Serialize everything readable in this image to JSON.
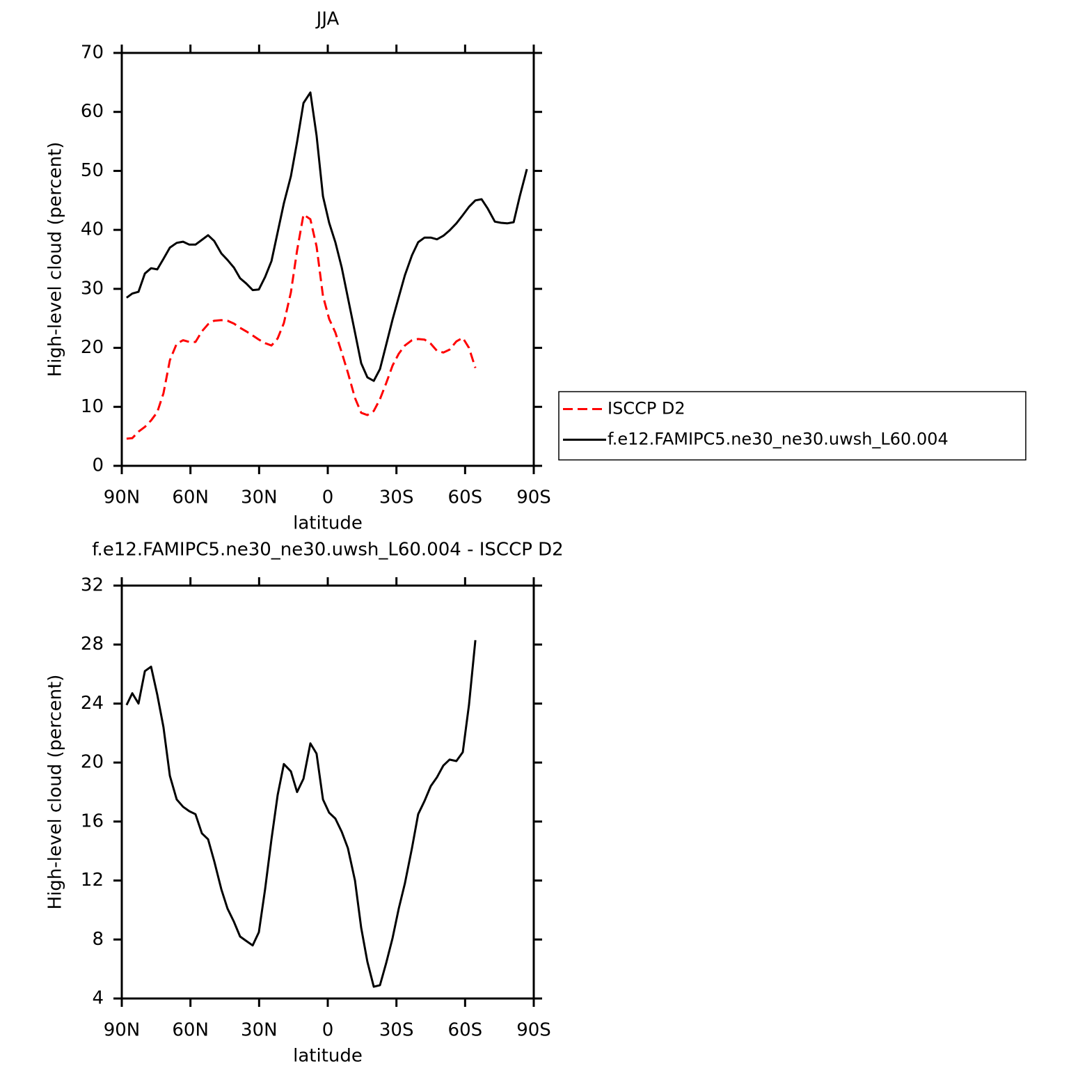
{
  "chart_data": [
    {
      "type": "line",
      "title": "JJA",
      "xlabel": "latitude",
      "ylabel": "High-level cloud (percent)",
      "x": [
        87.9,
        85.4,
        82.7,
        79.9,
        77.2,
        74.5,
        71.8,
        69.0,
        66.0,
        63.2,
        60.5,
        57.8,
        55.0,
        52.3,
        49.6,
        46.5,
        43.8,
        41.0,
        38.3,
        35.6,
        32.8,
        30.1,
        27.4,
        24.6,
        21.9,
        19.2,
        16.1,
        13.4,
        10.6,
        7.6,
        4.9,
        2.1,
        -0.6,
        -3.3,
        -6.1,
        -8.8,
        -11.9,
        -14.6,
        -17.3,
        -20.1,
        -22.8,
        -25.5,
        -28.3,
        -31.0,
        -33.7,
        -36.8,
        -39.5,
        -42.3,
        -45.0,
        -47.7,
        -50.5,
        -53.2,
        -56.2,
        -59.0,
        -61.7,
        -64.5,
        -67.2,
        -69.9,
        -73.0,
        -75.7,
        -78.4,
        -81.2,
        -83.9,
        -87.0
      ],
      "xlim": [
        90,
        -90
      ],
      "xticks": [
        {
          "value": 90,
          "label": "90N"
        },
        {
          "value": 60,
          "label": "60N"
        },
        {
          "value": 30,
          "label": "30N"
        },
        0,
        {
          "value": -30,
          "label": "30S"
        },
        {
          "value": -60,
          "label": "60S"
        },
        {
          "value": -90,
          "label": "90S"
        }
      ],
      "ylim": [
        0,
        70
      ],
      "yticks": [
        0,
        10,
        20,
        30,
        40,
        50,
        60,
        70
      ],
      "legend": "right",
      "series": [
        {
          "name": "ISCCP D2",
          "color": "#ff0000",
          "line_style": "dashed",
          "values": [
            4.6,
            4.7,
            5.8,
            6.6,
            7.7,
            9.1,
            12.3,
            17.9,
            20.7,
            21.3,
            21.0,
            21.0,
            22.8,
            24.0,
            24.6,
            24.7,
            24.6,
            24.1,
            23.4,
            22.8,
            22.1,
            21.4,
            20.8,
            20.4,
            21.6,
            24.2,
            29.4,
            36.5,
            42.6,
            41.8,
            37.2,
            28.8,
            24.9,
            22.6,
            19.2,
            15.8,
            11.5,
            9.0,
            8.6,
            9.3,
            11.3,
            14.0,
            17.0,
            19.0,
            20.4,
            21.3,
            21.5,
            21.4,
            20.7,
            19.5,
            19.2,
            19.7,
            21.1,
            21.7,
            20.0,
            16.6,
            null,
            null,
            null,
            null,
            null,
            null,
            null,
            null
          ]
        },
        {
          "name": "f.e12.FAMIPC5.ne30_ne30.uwsh_L60.004",
          "color": "#000000",
          "line_style": "solid",
          "values": [
            28.5,
            29.2,
            29.5,
            32.6,
            33.5,
            33.3,
            35.1,
            37.0,
            37.8,
            38.0,
            37.5,
            37.5,
            38.3,
            39.1,
            38.1,
            36.0,
            34.9,
            33.6,
            31.8,
            30.9,
            29.8,
            29.9,
            32.0,
            34.7,
            39.6,
            44.5,
            49.1,
            54.9,
            61.5,
            63.3,
            56.0,
            45.7,
            41.2,
            37.9,
            33.6,
            28.5,
            22.6,
            17.4,
            15.0,
            14.4,
            16.4,
            20.5,
            24.8,
            28.6,
            32.3,
            35.7,
            37.9,
            38.7,
            38.7,
            38.4,
            39.0,
            39.9,
            41.1,
            42.5,
            43.9,
            45.0,
            45.2,
            43.6,
            41.4,
            41.2,
            41.1,
            41.3,
            45.7,
            50.3
          ]
        }
      ]
    },
    {
      "type": "line",
      "title": "f.e12.FAMIPC5.ne30_ne30.uwsh_L60.004 - ISCCP D2",
      "xlabel": "latitude",
      "ylabel": "High-level cloud (percent)",
      "x": [
        87.9,
        85.4,
        82.7,
        79.9,
        77.2,
        74.5,
        71.8,
        69.0,
        66.0,
        63.2,
        60.5,
        57.8,
        55.0,
        52.3,
        49.6,
        46.5,
        43.8,
        41.0,
        38.3,
        35.6,
        32.8,
        30.1,
        27.4,
        24.6,
        21.9,
        19.2,
        16.1,
        13.4,
        10.6,
        7.6,
        4.9,
        2.1,
        -0.6,
        -3.3,
        -6.1,
        -8.8,
        -11.9,
        -14.6,
        -17.3,
        -20.1,
        -22.8,
        -25.5,
        -28.3,
        -31.0,
        -33.7,
        -36.8,
        -39.5,
        -42.3,
        -45.0,
        -47.7,
        -50.5,
        -53.2,
        -56.2,
        -59.0,
        -61.7,
        -64.5
      ],
      "xlim": [
        90,
        -90
      ],
      "xticks": [
        {
          "value": 90,
          "label": "90N"
        },
        {
          "value": 60,
          "label": "60N"
        },
        {
          "value": 30,
          "label": "30N"
        },
        0,
        {
          "value": -30,
          "label": "30S"
        },
        {
          "value": -60,
          "label": "60S"
        },
        {
          "value": -90,
          "label": "90S"
        }
      ],
      "ylim": [
        4,
        32
      ],
      "yticks": [
        4,
        8,
        12,
        16,
        20,
        24,
        28,
        32
      ],
      "legend": false,
      "series": [
        {
          "color": "#000000",
          "line_style": "solid",
          "values": [
            23.9,
            24.7,
            24.0,
            26.2,
            26.5,
            24.6,
            22.4,
            19.1,
            17.5,
            17.0,
            16.7,
            16.5,
            15.2,
            14.8,
            13.3,
            11.4,
            10.1,
            9.2,
            8.2,
            7.9,
            7.6,
            8.5,
            11.4,
            14.8,
            17.8,
            19.9,
            19.4,
            18.0,
            18.9,
            21.3,
            20.6,
            17.5,
            16.6,
            16.2,
            15.3,
            14.2,
            12.0,
            8.8,
            6.5,
            4.8,
            4.9,
            6.4,
            8.1,
            10.1,
            11.8,
            14.2,
            16.5,
            17.4,
            18.4,
            19.0,
            19.8,
            20.2,
            20.1,
            20.7,
            23.9,
            28.3
          ]
        }
      ]
    }
  ]
}
